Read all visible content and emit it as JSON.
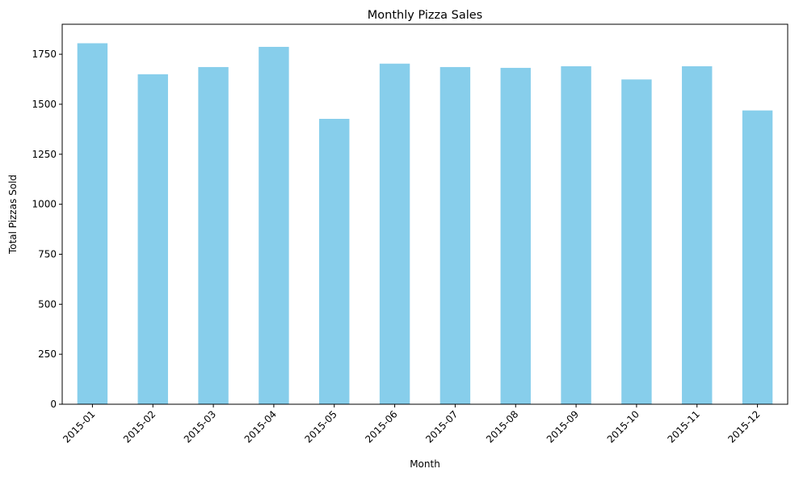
{
  "chart_data": {
    "type": "bar",
    "title": "Monthly Pizza Sales",
    "xlabel": "Month",
    "ylabel": "Total Pizzas Sold",
    "categories": [
      "2015-01",
      "2015-02",
      "2015-03",
      "2015-04",
      "2015-05",
      "2015-06",
      "2015-07",
      "2015-08",
      "2015-09",
      "2015-10",
      "2015-11",
      "2015-12"
    ],
    "values": [
      1805,
      1650,
      1686,
      1787,
      1427,
      1703,
      1686,
      1682,
      1690,
      1624,
      1690,
      1469
    ],
    "ylim": [
      0,
      1900
    ],
    "yticks": [
      0,
      250,
      500,
      750,
      1000,
      1250,
      1500,
      1750
    ],
    "bar_color": "#87ceeb",
    "grid": false,
    "legend": "none",
    "xtick_rotation": 45
  }
}
